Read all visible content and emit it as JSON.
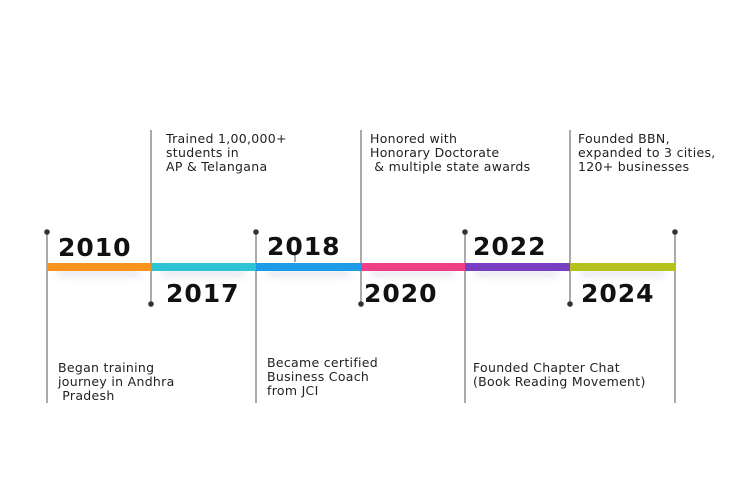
{
  "timeline": {
    "milestones": [
      {
        "year": "2010",
        "color": "#f7941d",
        "caption": "Began training\njourney in Andhra\n Pradesh"
      },
      {
        "year": "2017",
        "color": "#2ec4d6",
        "caption": "Trained 1,00,000+\nstudents in\nAP & Telangana"
      },
      {
        "year": "2018",
        "color": "#1e9be6",
        "caption": "Became certified\nBusiness Coach\nfrom JCI"
      },
      {
        "year": "2020",
        "color": "#ee3e86",
        "caption": "Honored with\nHonorary Doctorate\n & multiple state awards"
      },
      {
        "year": "2022",
        "color": "#7a3ec2",
        "caption": "Founded Chapter Chat\n(Book Reading Movement)"
      },
      {
        "year": "2024",
        "color": "#b5c21c",
        "caption": "Founded BBN,\nexpanded to 3 cities,\n120+ businesses"
      }
    ]
  }
}
